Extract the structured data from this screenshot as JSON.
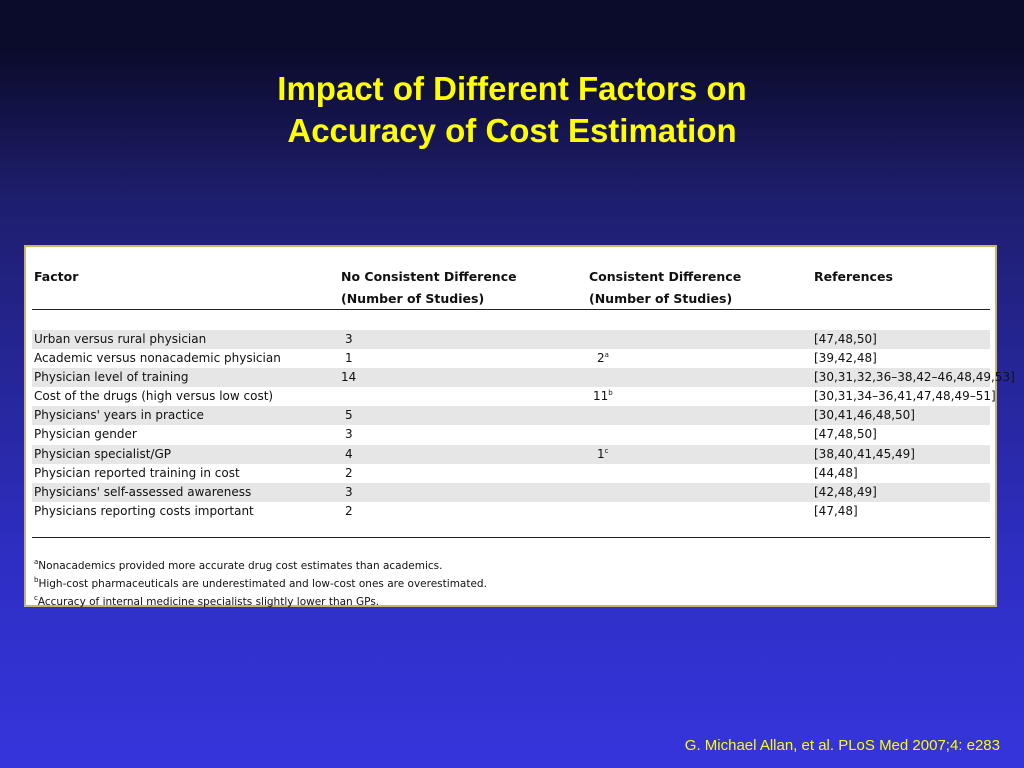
{
  "slide": {
    "title_line1": "Impact of Different Factors on",
    "title_line2": "Accuracy of Cost Estimation",
    "citation": "G. Michael Allan, et al. PLoS Med 2007;4: e283"
  },
  "table": {
    "headers": {
      "factor": "Factor",
      "no_consistent_1": "No Consistent Difference",
      "no_consistent_2": "(Number of Studies)",
      "consistent_1": "Consistent Difference",
      "consistent_2": "(Number of Studies)",
      "references": "References"
    },
    "rows": [
      {
        "factor": "Urban versus rural physician",
        "no_consistent": "3",
        "consistent": "",
        "consistent_sup": "",
        "references": "[47,48,50]"
      },
      {
        "factor": "Academic versus nonacademic physician",
        "no_consistent": "1",
        "consistent": "2",
        "consistent_sup": "a",
        "references": "[39,42,48]"
      },
      {
        "factor": "Physician level of training",
        "no_consistent": "14",
        "consistent": "",
        "consistent_sup": "",
        "references": "[30,31,32,36–38,42–46,48,49,53]"
      },
      {
        "factor": "Cost of the drugs (high versus low cost)",
        "no_consistent": "",
        "consistent": "11",
        "consistent_sup": "b",
        "references": "[30,31,34–36,41,47,48,49–51]"
      },
      {
        "factor": "Physicians' years in practice",
        "no_consistent": "5",
        "consistent": "",
        "consistent_sup": "",
        "references": "[30,41,46,48,50]"
      },
      {
        "factor": "Physician gender",
        "no_consistent": "3",
        "consistent": "",
        "consistent_sup": "",
        "references": "[47,48,50]"
      },
      {
        "factor": "Physician specialist/GP",
        "no_consistent": "4",
        "consistent": "1",
        "consistent_sup": "c",
        "references": "[38,40,41,45,49]"
      },
      {
        "factor": "Physician reported training in cost",
        "no_consistent": "2",
        "consistent": "",
        "consistent_sup": "",
        "references": "[44,48]"
      },
      {
        "factor": "Physicians' self-assessed awareness",
        "no_consistent": "3",
        "consistent": "",
        "consistent_sup": "",
        "references": "[42,48,49]"
      },
      {
        "factor": "Physicians reporting costs important",
        "no_consistent": "2",
        "consistent": "",
        "consistent_sup": "",
        "references": "[47,48]"
      }
    ],
    "footnotes": [
      {
        "mark": "a",
        "text": "Nonacademics provided more accurate drug cost estimates than academics."
      },
      {
        "mark": "b",
        "text": "High-cost pharmaceuticals are underestimated and low-cost ones are overestimated."
      },
      {
        "mark": "c",
        "text": "Accuracy of internal medicine specialists slightly lower than GPs."
      }
    ]
  },
  "colors": {
    "title": "#ffff00",
    "citation": "#ffff00",
    "row_shade": "#e6e6e6",
    "table_border": "#c8b56a"
  }
}
